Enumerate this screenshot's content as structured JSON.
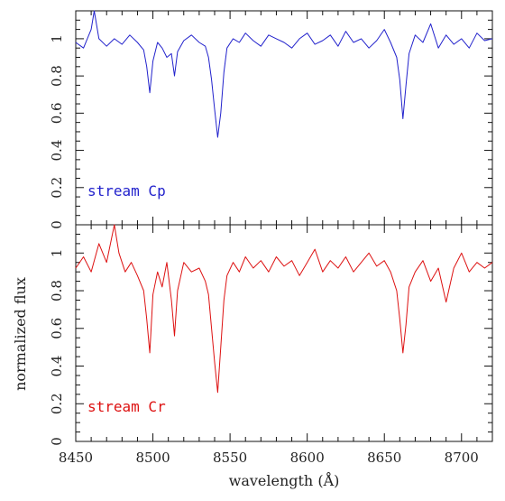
{
  "chart_data": {
    "type": "line",
    "xlabel": "wavelength (Å)",
    "ylabel": "normalized flux",
    "xlim": [
      8450,
      8720
    ],
    "x_ticks": [
      8450,
      8500,
      8550,
      8600,
      8650,
      8700
    ],
    "x_tick_labels": [
      "8450",
      "8500",
      "8550",
      "8600",
      "8650",
      "8700"
    ],
    "panels": [
      {
        "label": "stream Cp",
        "color": "#2222cc",
        "ylim": [
          0,
          1.15
        ],
        "y_ticks": [
          0,
          0.2,
          0.4,
          0.6,
          0.8,
          1
        ],
        "y_tick_labels": [
          "0",
          "0.2",
          "0.4",
          "0.6",
          "0.8",
          "1"
        ],
        "series": {
          "x": [
            8450,
            8455,
            8460,
            8462,
            8465,
            8470,
            8475,
            8480,
            8485,
            8490,
            8494,
            8496,
            8498,
            8500,
            8503,
            8506,
            8509,
            8512,
            8514,
            8516,
            8520,
            8525,
            8530,
            8534,
            8536,
            8538,
            8540,
            8542,
            8544,
            8546,
            8548,
            8552,
            8556,
            8560,
            8565,
            8570,
            8575,
            8580,
            8585,
            8590,
            8595,
            8600,
            8605,
            8610,
            8615,
            8620,
            8625,
            8630,
            8635,
            8640,
            8645,
            8650,
            8654,
            8658,
            8660,
            8662,
            8664,
            8666,
            8670,
            8675,
            8680,
            8685,
            8690,
            8695,
            8700,
            8705,
            8710,
            8715,
            8720
          ],
          "y": [
            0.98,
            0.95,
            1.05,
            1.2,
            1.0,
            0.96,
            1.0,
            0.97,
            1.02,
            0.98,
            0.94,
            0.85,
            0.71,
            0.88,
            0.98,
            0.95,
            0.9,
            0.92,
            0.8,
            0.93,
            0.99,
            1.02,
            0.98,
            0.96,
            0.9,
            0.78,
            0.62,
            0.47,
            0.6,
            0.82,
            0.95,
            1.0,
            0.98,
            1.03,
            0.99,
            0.96,
            1.02,
            1.0,
            0.98,
            0.95,
            1.0,
            1.03,
            0.97,
            0.99,
            1.02,
            0.96,
            1.04,
            0.98,
            1.0,
            0.95,
            0.99,
            1.05,
            0.98,
            0.9,
            0.78,
            0.57,
            0.75,
            0.92,
            1.02,
            0.98,
            1.08,
            0.95,
            1.02,
            0.97,
            1.0,
            0.95,
            1.03,
            0.99,
            1.0
          ]
        }
      },
      {
        "label": "stream Cr",
        "color": "#dd1111",
        "ylim": [
          0,
          1.15
        ],
        "y_ticks": [
          0,
          0.2,
          0.4,
          0.6,
          0.8,
          1
        ],
        "y_tick_labels": [
          "0",
          "0.2",
          "0.4",
          "0.6",
          "0.8",
          "1"
        ],
        "series": {
          "x": [
            8450,
            8455,
            8460,
            8465,
            8470,
            8475,
            8478,
            8482,
            8486,
            8490,
            8494,
            8496,
            8498,
            8500,
            8503,
            8506,
            8509,
            8512,
            8514,
            8516,
            8520,
            8525,
            8530,
            8534,
            8536,
            8538,
            8540,
            8542,
            8544,
            8546,
            8548,
            8552,
            8556,
            8560,
            8565,
            8570,
            8575,
            8580,
            8585,
            8590,
            8595,
            8600,
            8605,
            8610,
            8615,
            8620,
            8625,
            8630,
            8635,
            8640,
            8645,
            8650,
            8654,
            8658,
            8660,
            8662,
            8664,
            8666,
            8670,
            8675,
            8680,
            8685,
            8690,
            8695,
            8700,
            8705,
            8710,
            8715,
            8720
          ],
          "y": [
            0.92,
            0.98,
            0.9,
            1.05,
            0.95,
            1.15,
            1.0,
            0.9,
            0.95,
            0.88,
            0.8,
            0.65,
            0.47,
            0.78,
            0.9,
            0.82,
            0.95,
            0.75,
            0.56,
            0.8,
            0.95,
            0.9,
            0.92,
            0.85,
            0.78,
            0.6,
            0.42,
            0.26,
            0.5,
            0.75,
            0.88,
            0.95,
            0.9,
            0.98,
            0.92,
            0.96,
            0.9,
            0.98,
            0.93,
            0.96,
            0.88,
            0.95,
            1.02,
            0.9,
            0.96,
            0.92,
            0.98,
            0.9,
            0.95,
            1.0,
            0.93,
            0.96,
            0.9,
            0.8,
            0.65,
            0.47,
            0.62,
            0.82,
            0.9,
            0.96,
            0.85,
            0.92,
            0.74,
            0.92,
            1.0,
            0.9,
            0.95,
            0.92,
            0.95
          ]
        }
      }
    ]
  }
}
